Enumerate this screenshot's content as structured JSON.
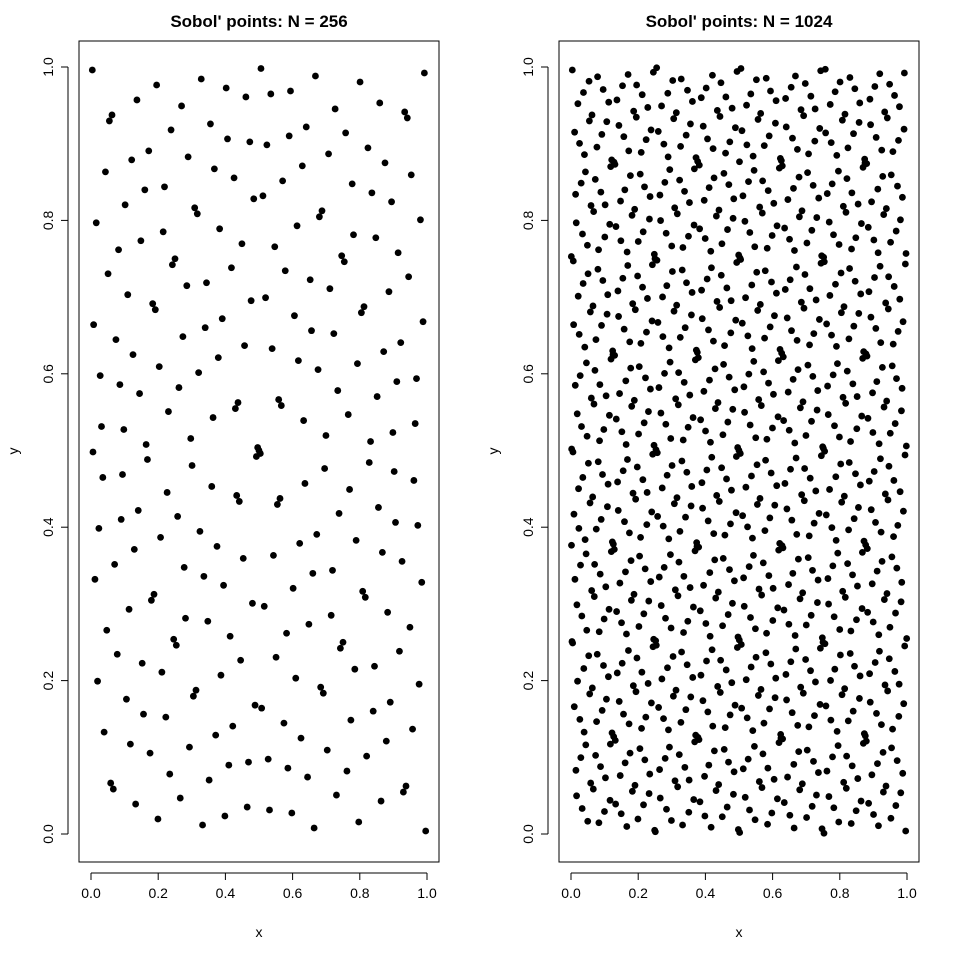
{
  "chart_data": [
    {
      "type": "scatter",
      "title": "Sobol' points: N = 256",
      "xlabel": "x",
      "ylabel": "y",
      "xlim": [
        0,
        1
      ],
      "ylim": [
        0,
        1
      ],
      "xticks": [
        "0.0",
        "0.2",
        "0.4",
        "0.6",
        "0.8",
        "1.0"
      ],
      "yticks": [
        "0.0",
        "0.2",
        "0.4",
        "0.6",
        "0.8",
        "1.0"
      ],
      "n_points": 256,
      "sequence": "sobol",
      "grid": false,
      "legend": "none"
    },
    {
      "type": "scatter",
      "title": "Sobol' points: N = 1024",
      "xlabel": "x",
      "ylabel": "y",
      "xlim": [
        0,
        1
      ],
      "ylim": [
        0,
        1
      ],
      "xticks": [
        "0.0",
        "0.2",
        "0.4",
        "0.6",
        "0.8",
        "1.0"
      ],
      "yticks": [
        "0.0",
        "0.2",
        "0.4",
        "0.6",
        "0.8",
        "1.0"
      ],
      "n_points": 1024,
      "sequence": "sobol",
      "grid": false,
      "legend": "none"
    }
  ]
}
